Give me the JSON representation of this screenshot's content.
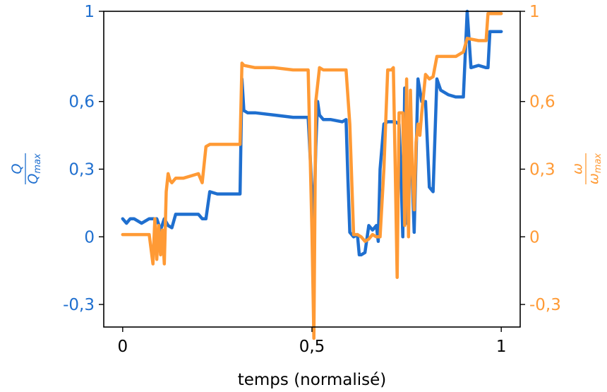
{
  "chart_data": {
    "type": "line",
    "xlabel": "temps (normalisé)",
    "ylabel_left": {
      "num": "Q",
      "den": "Q",
      "den_sub": "max"
    },
    "ylabel_right": {
      "num": "ω",
      "den": "ω",
      "den_sub": "max"
    },
    "xlim": [
      -0.05,
      1.05
    ],
    "ylim": [
      -0.4,
      1.0
    ],
    "x_ticks": [
      0,
      0.5,
      1
    ],
    "x_tick_labels": [
      "0",
      "0,5",
      "1"
    ],
    "y_ticks": [
      -0.3,
      0,
      0.3,
      0.6,
      1
    ],
    "y_tick_labels": [
      "-0,3",
      "0",
      "0,3",
      "0,6",
      "1"
    ],
    "grid": false,
    "legend": "none",
    "series": [
      {
        "axis": "left",
        "color": "#1f6fcf",
        "x": [
          0,
          0.01,
          0.02,
          0.03,
          0.05,
          0.07,
          0.09,
          0.1,
          0.11,
          0.12,
          0.13,
          0.14,
          0.16,
          0.18,
          0.2,
          0.21,
          0.22,
          0.23,
          0.25,
          0.27,
          0.29,
          0.31,
          0.315,
          0.32,
          0.33,
          0.35,
          0.4,
          0.45,
          0.49,
          0.5,
          0.505,
          0.51,
          0.515,
          0.52,
          0.53,
          0.55,
          0.58,
          0.59,
          0.595,
          0.6,
          0.61,
          0.62,
          0.625,
          0.63,
          0.64,
          0.65,
          0.66,
          0.67,
          0.675,
          0.68,
          0.69,
          0.7,
          0.72,
          0.73,
          0.735,
          0.74,
          0.745,
          0.75,
          0.755,
          0.76,
          0.77,
          0.78,
          0.79,
          0.8,
          0.81,
          0.82,
          0.83,
          0.84,
          0.86,
          0.88,
          0.89,
          0.9,
          0.91,
          0.92,
          0.94,
          0.96,
          0.965,
          0.97,
          0.98,
          1.0
        ],
        "values": [
          0.08,
          0.06,
          0.08,
          0.08,
          0.06,
          0.08,
          0.08,
          0.03,
          0.08,
          0.05,
          0.04,
          0.1,
          0.1,
          0.1,
          0.1,
          0.08,
          0.08,
          0.2,
          0.19,
          0.19,
          0.19,
          0.19,
          0.7,
          0.56,
          0.55,
          0.55,
          0.54,
          0.53,
          0.53,
          0.2,
          0.05,
          0.4,
          0.6,
          0.54,
          0.52,
          0.52,
          0.51,
          0.52,
          0.25,
          0.02,
          0.0,
          0.01,
          -0.08,
          -0.08,
          -0.07,
          0.05,
          0.03,
          0.05,
          -0.02,
          0.3,
          0.5,
          0.51,
          0.51,
          0.5,
          0.3,
          0.0,
          0.66,
          0.06,
          0.3,
          0.5,
          0.02,
          0.7,
          0.6,
          0.6,
          0.22,
          0.2,
          0.7,
          0.65,
          0.63,
          0.62,
          0.62,
          0.62,
          1.0,
          0.75,
          0.76,
          0.75,
          0.75,
          0.91,
          0.91,
          0.91
        ]
      },
      {
        "axis": "right",
        "color": "#ff9a35",
        "x": [
          0,
          0.02,
          0.05,
          0.07,
          0.08,
          0.085,
          0.09,
          0.095,
          0.1,
          0.105,
          0.11,
          0.115,
          0.12,
          0.125,
          0.13,
          0.14,
          0.16,
          0.18,
          0.2,
          0.21,
          0.22,
          0.23,
          0.25,
          0.27,
          0.29,
          0.31,
          0.315,
          0.32,
          0.35,
          0.4,
          0.45,
          0.48,
          0.49,
          0.5,
          0.505,
          0.51,
          0.52,
          0.53,
          0.55,
          0.58,
          0.59,
          0.6,
          0.61,
          0.62,
          0.63,
          0.64,
          0.65,
          0.66,
          0.67,
          0.68,
          0.69,
          0.7,
          0.71,
          0.715,
          0.72,
          0.725,
          0.73,
          0.74,
          0.745,
          0.75,
          0.755,
          0.76,
          0.765,
          0.77,
          0.775,
          0.78,
          0.785,
          0.79,
          0.8,
          0.81,
          0.82,
          0.83,
          0.84,
          0.86,
          0.88,
          0.9,
          0.91,
          0.94,
          0.96,
          0.965,
          0.98,
          1.0
        ],
        "values": [
          0.01,
          0.01,
          0.01,
          0.01,
          -0.12,
          0.08,
          -0.1,
          0.05,
          -0.08,
          0.03,
          -0.12,
          0.2,
          0.28,
          0.25,
          0.24,
          0.26,
          0.26,
          0.27,
          0.28,
          0.24,
          0.4,
          0.41,
          0.41,
          0.41,
          0.41,
          0.41,
          0.77,
          0.76,
          0.75,
          0.75,
          0.74,
          0.74,
          0.74,
          0.02,
          -0.45,
          0.6,
          0.75,
          0.74,
          0.74,
          0.74,
          0.74,
          0.5,
          0.01,
          0.01,
          0.0,
          -0.02,
          -0.01,
          0.01,
          0.0,
          0.0,
          0.3,
          0.74,
          0.74,
          0.75,
          0.3,
          -0.18,
          0.55,
          0.55,
          0.05,
          0.7,
          0.0,
          0.65,
          0.3,
          0.12,
          0.42,
          0.5,
          0.45,
          0.55,
          0.72,
          0.7,
          0.71,
          0.8,
          0.8,
          0.8,
          0.8,
          0.82,
          0.88,
          0.87,
          0.87,
          0.99,
          0.99,
          0.99
        ]
      }
    ]
  },
  "colors": {
    "left_axis": "#1f6fcf",
    "right_axis": "#ff9a35",
    "frame": "#000000"
  }
}
